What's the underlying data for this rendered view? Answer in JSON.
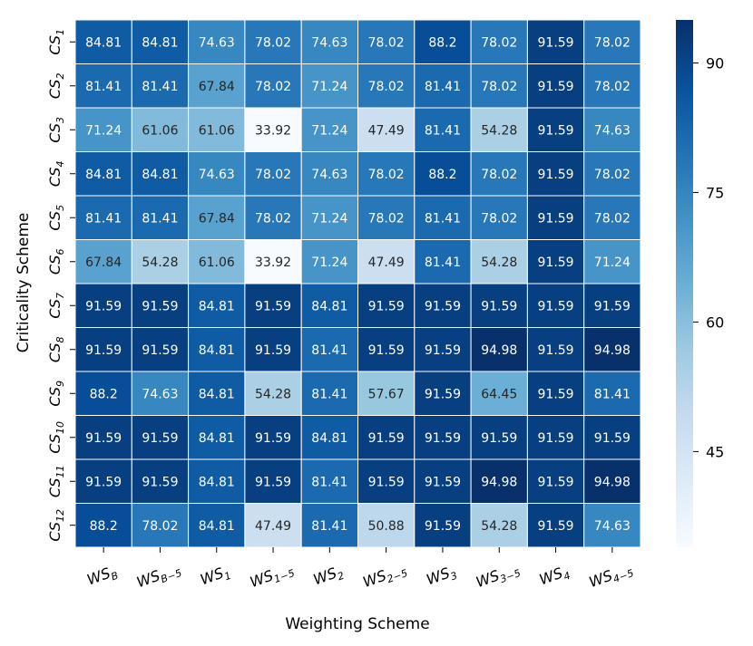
{
  "chart_data": {
    "type": "heatmap",
    "xlabel": "Weighting Scheme",
    "ylabel": "Criticality Scheme",
    "x_labels": [
      {
        "base": "WS",
        "sub": "B"
      },
      {
        "base": "WS",
        "sub": "B−5"
      },
      {
        "base": "WS",
        "sub": "1"
      },
      {
        "base": "WS",
        "sub": "1−5"
      },
      {
        "base": "WS",
        "sub": "2"
      },
      {
        "base": "WS",
        "sub": "2−5"
      },
      {
        "base": "WS",
        "sub": "3"
      },
      {
        "base": "WS",
        "sub": "3−5"
      },
      {
        "base": "WS",
        "sub": "4"
      },
      {
        "base": "WS",
        "sub": "4−5"
      }
    ],
    "y_labels": [
      {
        "base": "CS",
        "sub": "1"
      },
      {
        "base": "CS",
        "sub": "2"
      },
      {
        "base": "CS",
        "sub": "3"
      },
      {
        "base": "CS",
        "sub": "4"
      },
      {
        "base": "CS",
        "sub": "5"
      },
      {
        "base": "CS",
        "sub": "6"
      },
      {
        "base": "CS",
        "sub": "7"
      },
      {
        "base": "CS",
        "sub": "8"
      },
      {
        "base": "CS",
        "sub": "9"
      },
      {
        "base": "CS",
        "sub": "10"
      },
      {
        "base": "CS",
        "sub": "11"
      },
      {
        "base": "CS",
        "sub": "12"
      }
    ],
    "values": [
      [
        84.81,
        84.81,
        74.63,
        78.02,
        74.63,
        78.02,
        88.2,
        78.02,
        91.59,
        78.02
      ],
      [
        81.41,
        81.41,
        67.84,
        78.02,
        71.24,
        78.02,
        81.41,
        78.02,
        91.59,
        78.02
      ],
      [
        71.24,
        61.06,
        61.06,
        33.92,
        71.24,
        47.49,
        81.41,
        54.28,
        91.59,
        74.63
      ],
      [
        84.81,
        84.81,
        74.63,
        78.02,
        74.63,
        78.02,
        88.2,
        78.02,
        91.59,
        78.02
      ],
      [
        81.41,
        81.41,
        67.84,
        78.02,
        71.24,
        78.02,
        81.41,
        78.02,
        91.59,
        78.02
      ],
      [
        67.84,
        54.28,
        61.06,
        33.92,
        71.24,
        47.49,
        81.41,
        54.28,
        91.59,
        71.24
      ],
      [
        91.59,
        91.59,
        84.81,
        91.59,
        84.81,
        91.59,
        91.59,
        91.59,
        91.59,
        91.59
      ],
      [
        91.59,
        91.59,
        84.81,
        91.59,
        81.41,
        91.59,
        91.59,
        94.98,
        91.59,
        94.98
      ],
      [
        88.2,
        74.63,
        84.81,
        54.28,
        81.41,
        57.67,
        91.59,
        64.45,
        91.59,
        81.41
      ],
      [
        91.59,
        91.59,
        84.81,
        91.59,
        84.81,
        91.59,
        91.59,
        91.59,
        91.59,
        91.59
      ],
      [
        91.59,
        91.59,
        84.81,
        91.59,
        81.41,
        91.59,
        91.59,
        94.98,
        91.59,
        94.98
      ],
      [
        88.2,
        78.02,
        84.81,
        47.49,
        81.41,
        50.88,
        91.59,
        54.28,
        91.59,
        74.63
      ]
    ],
    "colorbar": {
      "range": [
        33.92,
        94.98
      ],
      "ticks": [
        45,
        60,
        75,
        90
      ],
      "colormap": "Blues"
    },
    "colors": {
      "cmap_stops": [
        "#f7fbff",
        "#deebf7",
        "#c6dbef",
        "#9ecae1",
        "#6baed6",
        "#4292c6",
        "#2171b5",
        "#08519c",
        "#08306b"
      ],
      "cell_border": "#ffffff",
      "text_dark": "#262626",
      "text_light": "#ffffff"
    }
  }
}
